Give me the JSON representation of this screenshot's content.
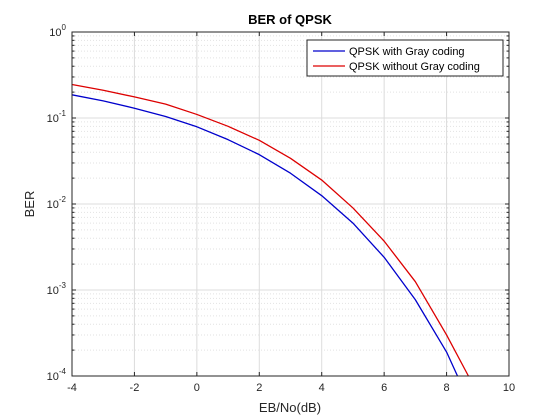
{
  "chart_data": {
    "type": "line",
    "title": "BER of QPSK",
    "xlabel": "EB/No(dB)",
    "ylabel": "BER",
    "xlim": [
      -4,
      10
    ],
    "ylim": [
      0.0001,
      1
    ],
    "yscale": "log",
    "x_ticks": [
      "-4",
      "-2",
      "0",
      "2",
      "4",
      "6",
      "8",
      "10"
    ],
    "y_ticks": [
      {
        "base": "10",
        "exp": "-4"
      },
      {
        "base": "10",
        "exp": "-3"
      },
      {
        "base": "10",
        "exp": "-2"
      },
      {
        "base": "10",
        "exp": "-1"
      },
      {
        "base": "10",
        "exp": "0"
      }
    ],
    "grid": true,
    "legend_position": "top-right",
    "series": [
      {
        "name": "QPSK with Gray coding",
        "color": "#0000cc",
        "x": [
          -4,
          -3,
          -2,
          -1,
          0,
          1,
          2,
          3,
          4,
          5,
          6,
          7,
          8,
          8.35
        ],
        "y": [
          0.186,
          0.158,
          0.13,
          0.104,
          0.079,
          0.056,
          0.0375,
          0.0228,
          0.0125,
          0.006,
          0.0024,
          0.00077,
          0.00019,
          0.0001
        ]
      },
      {
        "name": "QPSK without Gray coding",
        "color": "#dd0000",
        "x": [
          -4,
          -3,
          -2,
          -1,
          0,
          1,
          2,
          3,
          4,
          5,
          6,
          7,
          8,
          8.7
        ],
        "y": [
          0.245,
          0.21,
          0.176,
          0.145,
          0.11,
          0.08,
          0.055,
          0.034,
          0.019,
          0.009,
          0.0037,
          0.00125,
          0.0003,
          0.0001
        ]
      }
    ]
  }
}
